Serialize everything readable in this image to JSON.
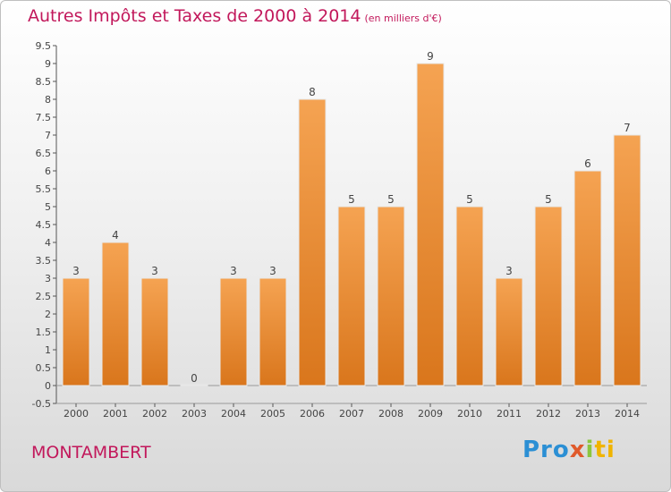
{
  "title": "Autres Impôts et Taxes de 2000 à 2014",
  "unit": "(en milliers d'€)",
  "location": "MONTAMBERT",
  "logo": "Proxiti",
  "colors": {
    "bar_top": "#f5a352",
    "bar_bottom": "#d9761c",
    "title": "#c2185b"
  },
  "chart_data": {
    "type": "bar",
    "categories": [
      "2000",
      "2001",
      "2002",
      "2003",
      "2004",
      "2005",
      "2006",
      "2007",
      "2008",
      "2009",
      "2010",
      "2011",
      "2012",
      "2013",
      "2014"
    ],
    "values": [
      3,
      4,
      3,
      0,
      3,
      3,
      8,
      5,
      5,
      9,
      5,
      3,
      5,
      6,
      7
    ],
    "ylim": [
      -0.5,
      9.5
    ],
    "yticks": [
      -0.5,
      0,
      0.5,
      1,
      1.5,
      2,
      2.5,
      3,
      3.5,
      4,
      4.5,
      5,
      5.5,
      6,
      6.5,
      7,
      7.5,
      8,
      8.5,
      9,
      9.5
    ],
    "grid": false,
    "xlabel": "",
    "ylabel": ""
  }
}
